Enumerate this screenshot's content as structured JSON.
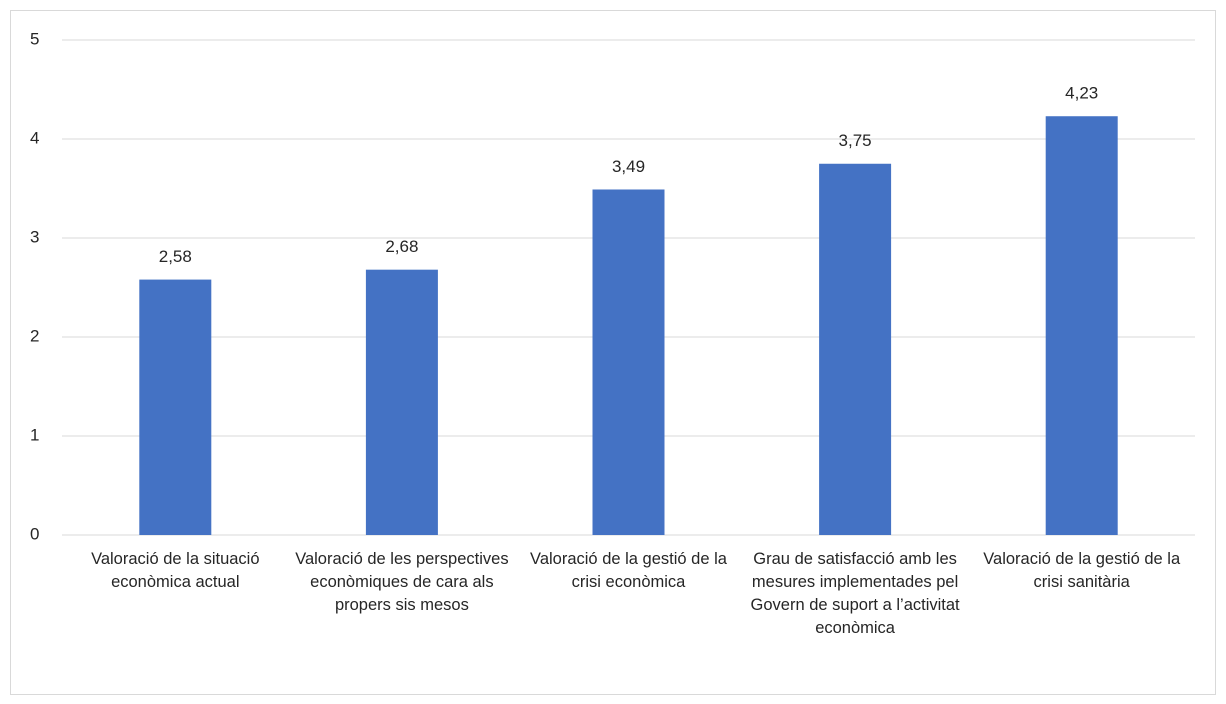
{
  "chart_data": {
    "type": "bar",
    "categories": [
      "Valoració de la situació econòmica actual",
      "Valoració de les perspectives econòmiques de cara als propers sis mesos",
      "Valoració de la gestió de la crisi econòmica",
      "Grau de satisfacció amb les mesures implementades pel Govern de suport a l’activitat econòmica",
      "Valoració de la gestió de la crisi sanitària"
    ],
    "values": [
      2.58,
      2.68,
      3.49,
      3.75,
      4.23
    ],
    "value_labels": [
      "2,58",
      "2,68",
      "3,49",
      "3,75",
      "4,23"
    ],
    "color": "#4472c4",
    "ylim": [
      0,
      5
    ],
    "yticks": [
      0,
      1,
      2,
      3,
      4,
      5
    ],
    "grid": true
  }
}
